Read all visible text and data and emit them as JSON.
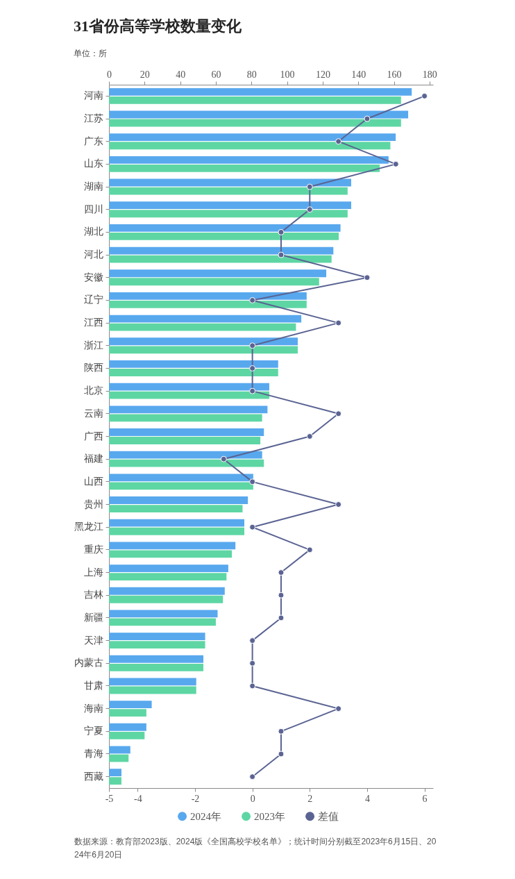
{
  "chart_data": {
    "type": "bar",
    "orientation": "horizontal",
    "title": "31省份高等学校数量变化",
    "subtitle": "单位：所",
    "categories": [
      "河南",
      "江苏",
      "广东",
      "山东",
      "湖南",
      "四川",
      "湖北",
      "河北",
      "安徽",
      "辽宁",
      "江西",
      "浙江",
      "陕西",
      "北京",
      "云南",
      "广西",
      "福建",
      "山西",
      "贵州",
      "黑龙江",
      "重庆",
      "上海",
      "吉林",
      "新疆",
      "天津",
      "内蒙古",
      "甘肃",
      "海南",
      "宁夏",
      "青海",
      "西藏"
    ],
    "series": [
      {
        "name": "2024年",
        "color": "#58a8ee",
        "axis": "x2",
        "values": [
          170,
          168,
          161,
          157,
          136,
          136,
          130,
          126,
          122,
          111,
          108,
          106,
          95,
          90,
          89,
          87,
          86,
          81,
          78,
          76,
          71,
          67,
          65,
          61,
          54,
          53,
          49,
          24,
          21,
          12,
          7
        ]
      },
      {
        "name": "2023年",
        "color": "#5ed6a4",
        "axis": "x2",
        "values": [
          164,
          164,
          158,
          152,
          134,
          134,
          129,
          125,
          118,
          111,
          105,
          106,
          95,
          90,
          86,
          85,
          87,
          81,
          75,
          76,
          69,
          66,
          64,
          60,
          54,
          53,
          49,
          21,
          20,
          11,
          7
        ]
      },
      {
        "name": "差值",
        "type": "line",
        "color": "#5a6392",
        "marker": "circle",
        "line_style": "solid",
        "values": [
          6,
          4,
          3,
          5,
          2,
          2,
          1,
          1,
          4,
          0,
          3,
          0,
          0,
          0,
          3,
          2,
          -1,
          0,
          3,
          0,
          2,
          1,
          1,
          1,
          0,
          0,
          0,
          3,
          1,
          1,
          0
        ]
      }
    ],
    "xlim": [
      -5,
      6.3
    ],
    "xticks": [
      -5,
      -4,
      -2,
      0,
      2,
      4,
      6
    ],
    "x2lim": [
      0,
      182
    ],
    "x2ticks": [
      0,
      20,
      40,
      60,
      80,
      100,
      120,
      140,
      160,
      180
    ],
    "grid": false,
    "legend": "bottom",
    "annotations": [
      "数据来源：教育部2023版、2024版《全国高校学校名单》；统计时间分别截至2023年6月15日、2024年6月20日"
    ]
  }
}
